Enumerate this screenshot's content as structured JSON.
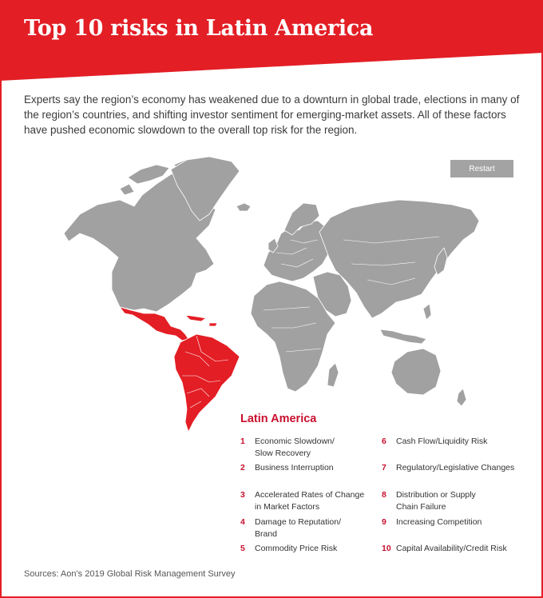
{
  "header": {
    "title": "Top 10 risks in Latin America"
  },
  "intro": {
    "text": "Experts say the region’s economy has weakened due to a downturn in global trade, elections in many of the region’s countries, and shifting investor sentiment for emerging-market assets. All of these factors have pushed economic slowdown to the overall top risk for the region."
  },
  "controls": {
    "restart_label": "Restart"
  },
  "map": {
    "highlighted_region": "Latin America",
    "highlight_color": "#e31e25",
    "land_color": "#a1a1a1"
  },
  "region": {
    "title": "Latin America",
    "risks": [
      {
        "num": "1",
        "label": "Economic Slowdown/\nSlow Recovery"
      },
      {
        "num": "2",
        "label": "Business Interruption"
      },
      {
        "num": "3",
        "label": "Accelerated Rates of Change\nin Market Factors"
      },
      {
        "num": "4",
        "label": "Damage to Reputation/\nBrand"
      },
      {
        "num": "5",
        "label": "Commodity Price Risk"
      },
      {
        "num": "6",
        "label": "Cash Flow/Liquidity Risk"
      },
      {
        "num": "7",
        "label": "Regulatory/Legislative Changes"
      },
      {
        "num": "8",
        "label": "Distribution or Supply\nChain Failure"
      },
      {
        "num": "9",
        "label": "Increasing Competition"
      },
      {
        "num": "10",
        "label": "Capital Availability/Credit Risk"
      }
    ]
  },
  "footer": {
    "source": "Sources: Aon’s 2019 Global Risk Management Survey"
  },
  "colors": {
    "brand_red": "#e31e25",
    "number_red": "#c8102e",
    "button_gray": "#a3a3a3"
  }
}
